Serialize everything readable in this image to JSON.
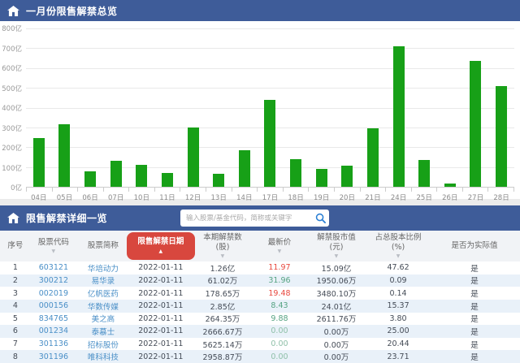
{
  "overview_header": {
    "title": "一月份限售解禁总览"
  },
  "chart_data": {
    "type": "bar",
    "title": "一月份限售解禁总览",
    "categories": [
      "04日",
      "05日",
      "06日",
      "07日",
      "10日",
      "11日",
      "12日",
      "13日",
      "14日",
      "17日",
      "18日",
      "19日",
      "20日",
      "21日",
      "24日",
      "25日",
      "26日",
      "27日",
      "28日"
    ],
    "values": [
      245,
      315,
      80,
      130,
      110,
      70,
      300,
      65,
      185,
      440,
      140,
      90,
      105,
      295,
      710,
      135,
      15,
      635,
      510
    ],
    "unit": "亿",
    "xlabel": "",
    "ylabel": "",
    "ylim": [
      0,
      800
    ],
    "ytick_step": 100,
    "ylabel_suffix": "亿",
    "grid": true,
    "legend": false,
    "bar_color": "#17a017"
  },
  "detail_header": {
    "title": "限售解禁详细一览",
    "search_placeholder": "输入股票/基金代码，简称或关键字"
  },
  "table": {
    "columns": [
      {
        "key": "seq",
        "label": "序号",
        "sub": "",
        "sort": "",
        "active": false
      },
      {
        "key": "code",
        "label": "股票代码",
        "sub": "",
        "sort": "desc",
        "active": false
      },
      {
        "key": "name",
        "label": "股票简称",
        "sub": "",
        "sort": "",
        "active": false
      },
      {
        "key": "date",
        "label": "限售解禁日期",
        "sub": "",
        "sort": "asc",
        "active": true
      },
      {
        "key": "shares",
        "label": "本期解禁数",
        "sub": "(股)",
        "sort": "desc",
        "active": false
      },
      {
        "key": "price",
        "label": "最新价",
        "sub": "",
        "sort": "desc",
        "active": false
      },
      {
        "key": "value",
        "label": "解禁股市值",
        "sub": "(元)",
        "sort": "desc",
        "active": false
      },
      {
        "key": "ratio",
        "label": "占总股本比例",
        "sub": "(%)",
        "sort": "desc",
        "active": false
      },
      {
        "key": "actual",
        "label": "是否为实际值",
        "sub": "",
        "sort": "",
        "active": false
      }
    ],
    "rows": [
      {
        "seq": "1",
        "code": "603121",
        "name": "华培动力",
        "date": "2022-01-11",
        "shares": "1.26亿",
        "price": "11.97",
        "trend": "up",
        "value": "15.09亿",
        "ratio": "47.62",
        "actual": "是"
      },
      {
        "seq": "2",
        "code": "300212",
        "name": "易华录",
        "date": "2022-01-11",
        "shares": "61.02万",
        "price": "31.96",
        "trend": "down",
        "value": "1950.06万",
        "ratio": "0.09",
        "actual": "是"
      },
      {
        "seq": "3",
        "code": "002019",
        "name": "亿帆医药",
        "date": "2022-01-11",
        "shares": "178.65万",
        "price": "19.48",
        "trend": "up",
        "value": "3480.10万",
        "ratio": "0.14",
        "actual": "是"
      },
      {
        "seq": "4",
        "code": "000156",
        "name": "华数传媒",
        "date": "2022-01-11",
        "shares": "2.85亿",
        "price": "8.43",
        "trend": "down",
        "value": "24.01亿",
        "ratio": "15.37",
        "actual": "是"
      },
      {
        "seq": "5",
        "code": "834765",
        "name": "美之高",
        "date": "2022-01-11",
        "shares": "264.35万",
        "price": "9.88",
        "trend": "down",
        "value": "2611.76万",
        "ratio": "3.80",
        "actual": "是"
      },
      {
        "seq": "6",
        "code": "001234",
        "name": "泰慕士",
        "date": "2022-01-11",
        "shares": "2666.67万",
        "price": "0.00",
        "trend": "flat",
        "value": "0.00万",
        "ratio": "25.00",
        "actual": "是"
      },
      {
        "seq": "7",
        "code": "301136",
        "name": "招标股份",
        "date": "2022-01-11",
        "shares": "5625.14万",
        "price": "0.00",
        "trend": "flat",
        "value": "0.00万",
        "ratio": "20.44",
        "actual": "是"
      },
      {
        "seq": "8",
        "code": "301196",
        "name": "唯科科技",
        "date": "2022-01-11",
        "shares": "2958.87万",
        "price": "0.00",
        "trend": "flat",
        "value": "0.00万",
        "ratio": "23.71",
        "actual": "是"
      }
    ]
  },
  "colors": {
    "header_bg": "#3e5c99",
    "bar": "#17a017",
    "pill": "#d8473e",
    "link": "#4a8fc7",
    "price_up": "#e8493f",
    "price_down": "#56a383",
    "row_alt": "#e9f1f9"
  }
}
